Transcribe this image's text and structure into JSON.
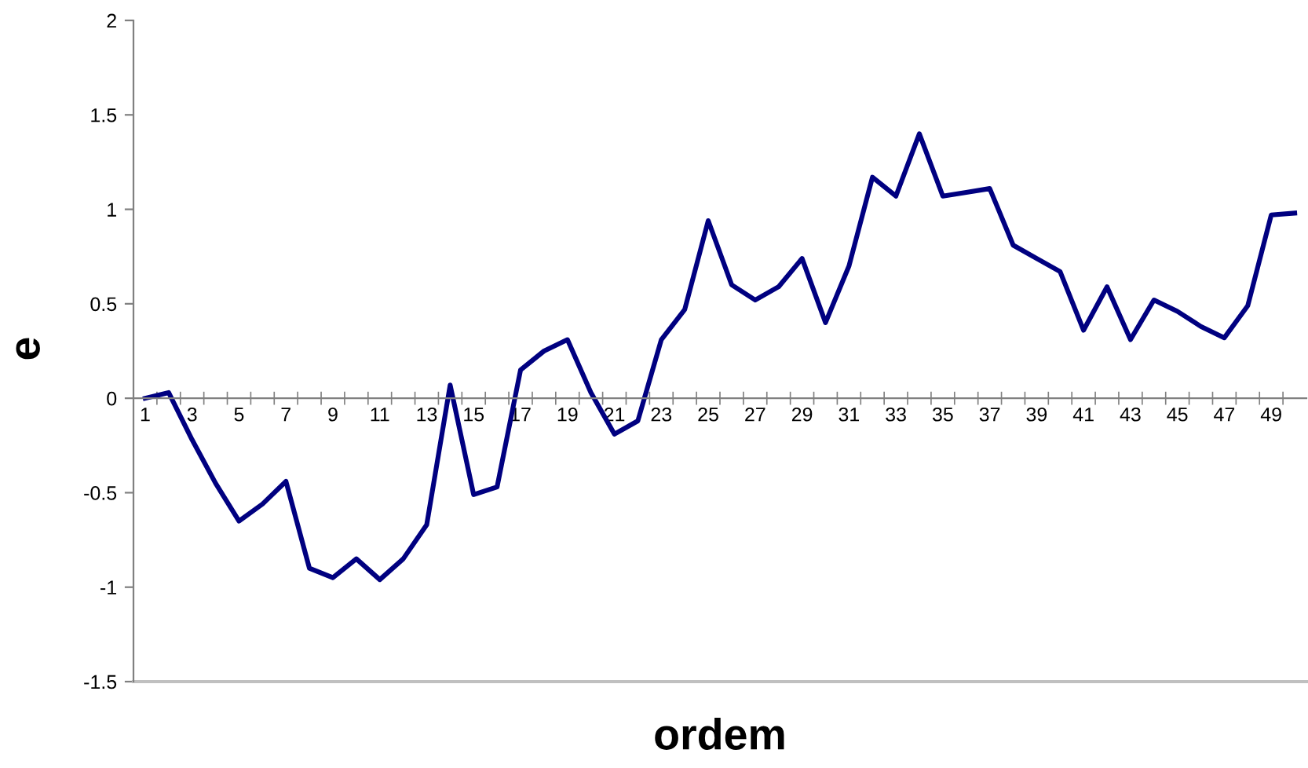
{
  "chart_data": {
    "type": "line",
    "xlabel": "ordem",
    "ylabel": "e",
    "categories": [
      "1",
      null,
      "3",
      null,
      "5",
      null,
      "7",
      null,
      "9",
      null,
      "11",
      null,
      "13",
      null,
      "15",
      null,
      "17",
      null,
      "19",
      null,
      "21",
      null,
      "23",
      null,
      "25",
      null,
      "27",
      null,
      "29",
      null,
      "31",
      null,
      "33",
      null,
      "35",
      null,
      "37",
      null,
      "39",
      null,
      "41",
      null,
      "43",
      null,
      "45",
      null,
      "47",
      null,
      "49",
      null
    ],
    "series": [
      {
        "color": "#000080",
        "values": [
          0.0,
          0.03,
          -0.22,
          -0.45,
          -0.65,
          -0.56,
          -0.44,
          -0.9,
          -0.95,
          -0.85,
          -0.96,
          -0.85,
          -0.67,
          0.07,
          -0.51,
          -0.47,
          0.15,
          0.25,
          0.31,
          0.03,
          -0.19,
          -0.12,
          0.31,
          0.47,
          0.94,
          0.6,
          0.52,
          0.59,
          0.74,
          0.4,
          0.7,
          1.17,
          1.07,
          1.4,
          1.07,
          1.09,
          1.11,
          0.81,
          0.74,
          0.67,
          0.36,
          0.59,
          0.31,
          0.52,
          0.46,
          0.38,
          0.32,
          0.49,
          0.97,
          0.98
        ]
      }
    ],
    "ylim": [
      -1.5,
      2
    ],
    "yticks": [
      -1.5,
      -1,
      -0.5,
      0,
      0.5,
      1,
      1.5,
      2
    ],
    "grid": false,
    "marker": "none",
    "line_style": "solid"
  }
}
